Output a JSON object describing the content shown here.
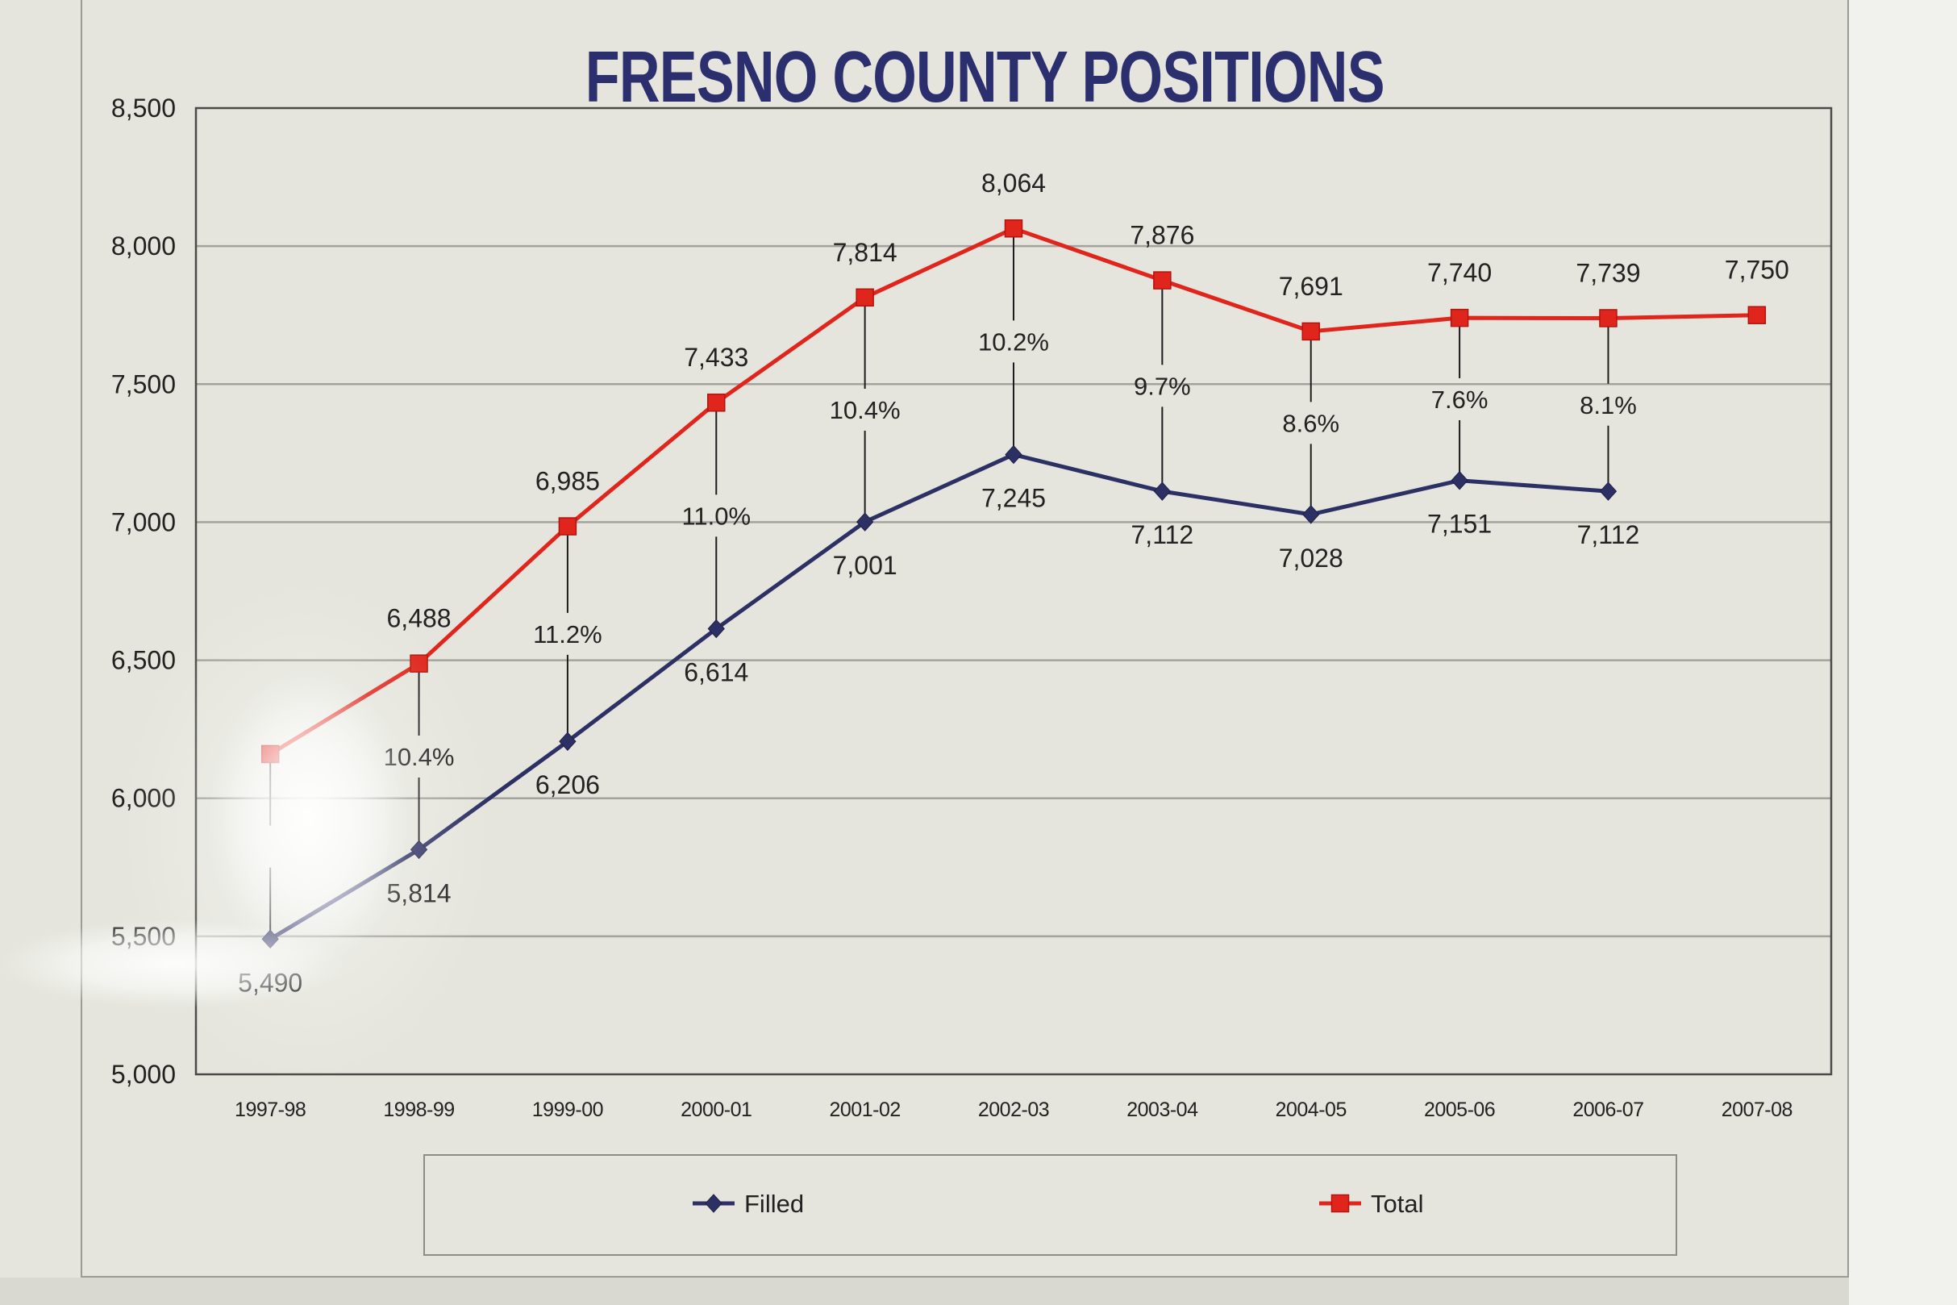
{
  "chart_data": {
    "type": "line",
    "title": "FRESNO COUNTY POSITIONS",
    "categories": [
      "1997-98",
      "1998-99",
      "1999-00",
      "2000-01",
      "2001-02",
      "2002-03",
      "2003-04",
      "2004-05",
      "2005-06",
      "2006-07",
      "2007-08"
    ],
    "ylim": [
      5000,
      8500
    ],
    "yticks": [
      5000,
      5500,
      6000,
      6500,
      7000,
      7500,
      8000,
      8500
    ],
    "ytick_labels": [
      "5,000",
      "5,500",
      "6,000",
      "6,500",
      "7,000",
      "7,500",
      "8,000",
      "8,500"
    ],
    "grid": true,
    "legend_position": "bottom",
    "series": [
      {
        "name": "Filled",
        "color": "#2d3064",
        "marker": "diamond",
        "values": [
          5490,
          5814,
          6206,
          6614,
          7001,
          7245,
          7112,
          7028,
          7151,
          7112,
          null
        ],
        "labels": [
          "5,490",
          "5,814",
          "6,206",
          "6,614",
          "7,001",
          "7,245",
          "7,112",
          "7,028",
          "7,151",
          "7,112",
          null
        ]
      },
      {
        "name": "Total",
        "color": "#e0261c",
        "marker": "square",
        "values": [
          6160,
          6488,
          6985,
          7433,
          7814,
          8064,
          7876,
          7691,
          7740,
          7739,
          7750
        ],
        "labels": [
          null,
          "6,488",
          "6,985",
          "7,433",
          "7,814",
          "8,064",
          "7,876",
          "7,691",
          "7,740",
          "7,739",
          "7,750"
        ]
      }
    ],
    "gap_labels": [
      null,
      "10.4%",
      "11.2%",
      "11.0%",
      "10.4%",
      "10.2%",
      "9.7%",
      "8.6%",
      "7.6%",
      "8.1%",
      null
    ]
  }
}
